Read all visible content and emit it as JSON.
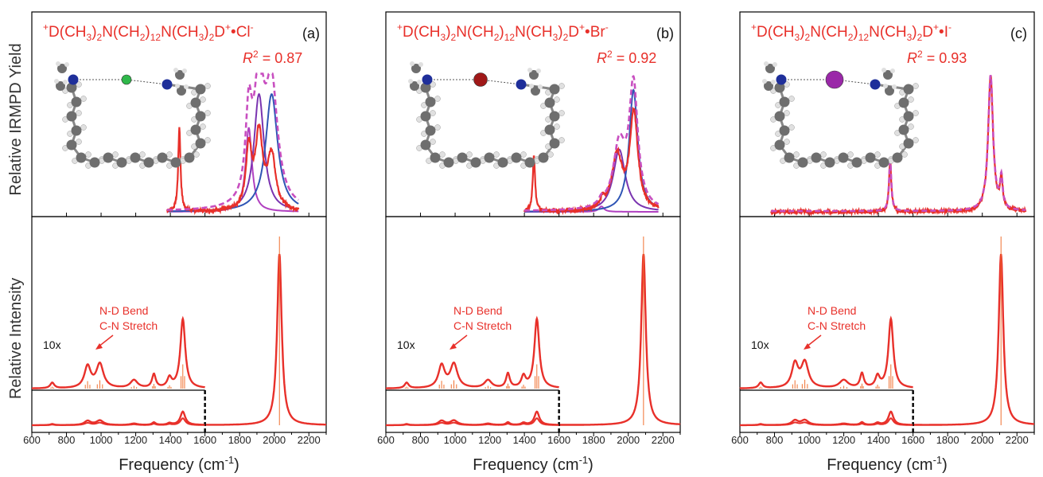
{
  "figure": {
    "ylabel_top": "Relative IRMPD Yield",
    "ylabel_bottom": "Relative Intensity",
    "xlabel_main": "Frequency (cm",
    "xlabel_sup": "-1",
    "xlabel_close": ")",
    "inset_scale_label": "10x",
    "annotation_line1": "N-D Bend",
    "annotation_line2": "C-N Stretch",
    "formula_main": "D(CH",
    "formula_3": "3",
    "formula_2": "2",
    "formula_12": "12",
    "formula_plus": "+",
    "formula_dot": "•",
    "formula_nch": "N(CH",
    "formula_paren": ")",
    "formula_d": "D",
    "r2_r": "R",
    "r2_sup": "2",
    "colors": {
      "experiment": "#e8302a",
      "fit_sum": "#c84fc0",
      "band_purple": "#7a34b0",
      "band_blue": "#2f55b5",
      "band_magenta": "#b040c0",
      "stick": "#f07030",
      "atom_carbon": "#6e6e6e",
      "atom_hydrogen": "#e0e0e0",
      "atom_nitrogen": "#1f2f9a"
    }
  },
  "chart_data": [
    {
      "type": "line",
      "panel_label": "(a)",
      "anion": "Cl",
      "anion_charge": "-",
      "anion_color": "#2fb84a",
      "r2_value": " = 0.87",
      "xlim": [
        600,
        2300
      ],
      "xticks": [
        "600",
        "800",
        "1000",
        "1200",
        "1400",
        "1600",
        "1800",
        "2000",
        "2200"
      ],
      "irmpd": {
        "baseline_start": 1380,
        "baseline_end": 2140,
        "peaks": [
          {
            "center": 1452,
            "height": 0.62,
            "width": 8
          },
          {
            "center": 1853,
            "height": 0.45,
            "width": 20
          },
          {
            "center": 1912,
            "height": 0.55,
            "width": 25
          },
          {
            "center": 1985,
            "height": 0.4,
            "width": 28
          }
        ],
        "fit_bands": [
          {
            "name": "band1",
            "color_key": "band_magenta",
            "center": 1853,
            "height": 0.62,
            "width": 22
          },
          {
            "name": "band2",
            "color_key": "band_purple",
            "center": 1912,
            "height": 0.87,
            "width": 35
          },
          {
            "name": "band3",
            "color_key": "band_blue",
            "center": 1985,
            "height": 0.87,
            "width": 42
          }
        ]
      },
      "calculated": {
        "main_peak": {
          "center": 2030,
          "height": 1.0,
          "width": 16
        },
        "inset_peaks": [
          {
            "center": 718,
            "height": 0.07,
            "width": 14
          },
          {
            "center": 922,
            "height": 0.27,
            "width": 22
          },
          {
            "center": 993,
            "height": 0.3,
            "width": 25
          },
          {
            "center": 1190,
            "height": 0.1,
            "width": 25
          },
          {
            "center": 1305,
            "height": 0.17,
            "width": 13
          },
          {
            "center": 1395,
            "height": 0.12,
            "width": 15
          },
          {
            "center": 1472,
            "height": 0.87,
            "width": 17
          }
        ]
      }
    },
    {
      "type": "line",
      "panel_label": "(b)",
      "anion": "Br",
      "anion_charge": "-",
      "anion_color": "#a01818",
      "r2_value": " = 0.92",
      "xlim": [
        600,
        2300
      ],
      "xticks": [
        "600",
        "800",
        "1000",
        "1200",
        "1400",
        "1600",
        "1800",
        "2000",
        "2200"
      ],
      "irmpd": {
        "baseline_start": 1400,
        "baseline_end": 2175,
        "peaks": [
          {
            "center": 1455,
            "height": 0.42,
            "width": 8
          },
          {
            "center": 1850,
            "height": 0.06,
            "width": 15
          },
          {
            "center": 1935,
            "height": 0.4,
            "width": 35
          },
          {
            "center": 2032,
            "height": 0.72,
            "width": 28
          }
        ],
        "fit_bands": [
          {
            "name": "band1",
            "color_key": "band_magenta",
            "center": 1845,
            "height": 0.04,
            "width": 18
          },
          {
            "name": "band2",
            "color_key": "band_purple",
            "center": 1948,
            "height": 0.46,
            "width": 42
          },
          {
            "name": "band3",
            "color_key": "band_blue",
            "center": 2030,
            "height": 0.9,
            "width": 30
          }
        ]
      },
      "calculated": {
        "main_peak": {
          "center": 2088,
          "height": 1.0,
          "width": 16
        },
        "inset_peaks": [
          {
            "center": 720,
            "height": 0.07,
            "width": 14
          },
          {
            "center": 922,
            "height": 0.28,
            "width": 22
          },
          {
            "center": 993,
            "height": 0.3,
            "width": 25
          },
          {
            "center": 1190,
            "height": 0.1,
            "width": 25
          },
          {
            "center": 1305,
            "height": 0.18,
            "width": 13
          },
          {
            "center": 1395,
            "height": 0.14,
            "width": 15
          },
          {
            "center": 1472,
            "height": 0.87,
            "width": 17
          }
        ]
      }
    },
    {
      "type": "line",
      "panel_label": "(c)",
      "anion": "I",
      "anion_charge": "-",
      "anion_color": "#9a28a8",
      "r2_value": " = 0.93",
      "xlim": [
        600,
        2300
      ],
      "xticks": [
        "600",
        "800",
        "1000",
        "1200",
        "1400",
        "1600",
        "1800",
        "2000",
        "2200"
      ],
      "irmpd": {
        "baseline_start": 780,
        "baseline_end": 2250,
        "peaks": [
          {
            "center": 1468,
            "height": 0.37,
            "width": 8
          },
          {
            "center": 2048,
            "height": 1.0,
            "width": 17
          },
          {
            "center": 2110,
            "height": 0.22,
            "width": 9
          }
        ],
        "fit_bands": []
      },
      "calculated": {
        "main_peak": {
          "center": 2108,
          "height": 1.0,
          "width": 16
        },
        "inset_peaks": [
          {
            "center": 720,
            "height": 0.07,
            "width": 14
          },
          {
            "center": 918,
            "height": 0.3,
            "width": 22
          },
          {
            "center": 975,
            "height": 0.32,
            "width": 25
          },
          {
            "center": 1200,
            "height": 0.1,
            "width": 30
          },
          {
            "center": 1305,
            "height": 0.18,
            "width": 13
          },
          {
            "center": 1395,
            "height": 0.14,
            "width": 15
          },
          {
            "center": 1472,
            "height": 0.87,
            "width": 17
          }
        ]
      }
    }
  ]
}
